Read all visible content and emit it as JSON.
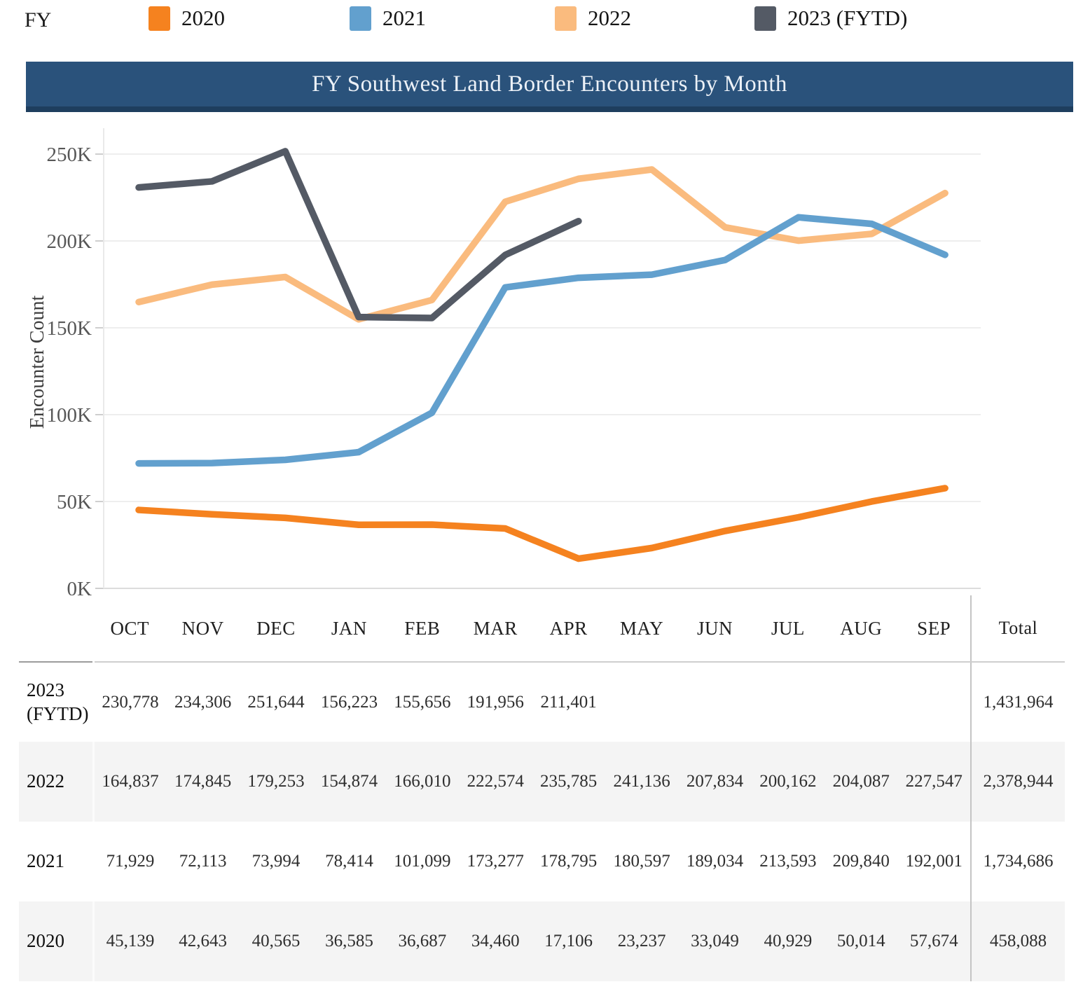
{
  "legend": {
    "title": "FY",
    "items": [
      {
        "label": "2020",
        "color": "#F5821F"
      },
      {
        "label": "2021",
        "color": "#62A0CE"
      },
      {
        "label": "2022",
        "color": "#FABB7E"
      },
      {
        "label": "2023 (FYTD)",
        "color": "#545A65"
      }
    ]
  },
  "header": {
    "title": "FY Southwest Land Border Encounters by Month"
  },
  "chart_data": {
    "type": "line",
    "title": "FY Southwest Land Border Encounters by Month",
    "xlabel": "",
    "ylabel": "Encounter Count",
    "ylim": [
      0,
      250000
    ],
    "grid": true,
    "legend_position": "top",
    "categories": [
      "OCT",
      "NOV",
      "DEC",
      "JAN",
      "FEB",
      "MAR",
      "APR",
      "MAY",
      "JUN",
      "JUL",
      "AUG",
      "SEP"
    ],
    "yticks": [
      {
        "value": 0,
        "label": "0K"
      },
      {
        "value": 50000,
        "label": "50K"
      },
      {
        "value": 100000,
        "label": "100K"
      },
      {
        "value": 150000,
        "label": "150K"
      },
      {
        "value": 200000,
        "label": "200K"
      },
      {
        "value": 250000,
        "label": "250K"
      }
    ],
    "series": [
      {
        "name": "2023 (FYTD)",
        "color": "#545A65",
        "values": [
          230778,
          234306,
          251644,
          156223,
          155656,
          191956,
          211401
        ]
      },
      {
        "name": "2022",
        "color": "#FABB7E",
        "values": [
          164837,
          174845,
          179253,
          154874,
          166010,
          222574,
          235785,
          241136,
          207834,
          200162,
          204087,
          227547
        ]
      },
      {
        "name": "2021",
        "color": "#62A0CE",
        "values": [
          71929,
          72113,
          73994,
          78414,
          101099,
          173277,
          178795,
          180597,
          189034,
          213593,
          209840,
          192001
        ]
      },
      {
        "name": "2020",
        "color": "#F5821F",
        "values": [
          45139,
          42643,
          40565,
          36585,
          36687,
          34460,
          17106,
          23237,
          33049,
          40929,
          50014,
          57674
        ]
      }
    ]
  },
  "table": {
    "columns": [
      "OCT",
      "NOV",
      "DEC",
      "JAN",
      "FEB",
      "MAR",
      "APR",
      "MAY",
      "JUN",
      "JUL",
      "AUG",
      "SEP"
    ],
    "total_label": "Total",
    "rows": [
      {
        "label": "2023 (FYTD)",
        "values": [
          "230,778",
          "234,306",
          "251,644",
          "156,223",
          "155,656",
          "191,956",
          "211,401",
          "",
          "",
          "",
          "",
          ""
        ],
        "total": "1,431,964"
      },
      {
        "label": "2022",
        "values": [
          "164,837",
          "174,845",
          "179,253",
          "154,874",
          "166,010",
          "222,574",
          "235,785",
          "241,136",
          "207,834",
          "200,162",
          "204,087",
          "227,547"
        ],
        "total": "2,378,944"
      },
      {
        "label": "2021",
        "values": [
          "71,929",
          "72,113",
          "73,994",
          "78,414",
          "101,099",
          "173,277",
          "178,795",
          "180,597",
          "189,034",
          "213,593",
          "209,840",
          "192,001"
        ],
        "total": "1,734,686"
      },
      {
        "label": "2020",
        "values": [
          "45,139",
          "42,643",
          "40,565",
          "36,585",
          "36,687",
          "34,460",
          "17,106",
          "23,237",
          "33,049",
          "40,929",
          "50,014",
          "57,674"
        ],
        "total": "458,088"
      }
    ]
  }
}
